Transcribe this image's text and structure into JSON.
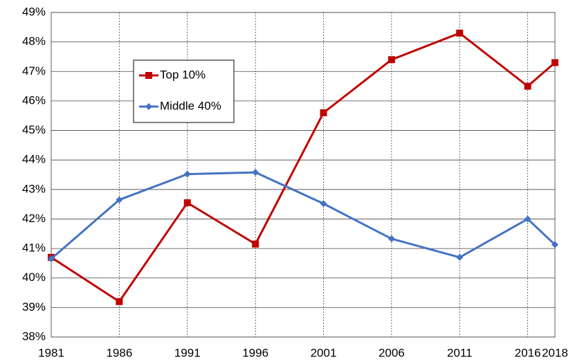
{
  "chart_data": {
    "type": "line",
    "x": [
      1981,
      1986,
      1991,
      1996,
      2001,
      2006,
      2011,
      2016,
      2018
    ],
    "series": [
      {
        "name": "Top 10%",
        "color": "#c00000",
        "marker": "square",
        "values": [
          40.7,
          39.2,
          42.55,
          41.15,
          45.6,
          47.4,
          48.3,
          46.5,
          47.3
        ]
      },
      {
        "name": "Middle 40%",
        "color": "#4472c4",
        "marker": "diamond",
        "values": [
          40.65,
          42.65,
          43.52,
          43.58,
          42.52,
          41.33,
          40.7,
          42.0,
          41.13
        ]
      }
    ],
    "xlim": [
      1981,
      2018
    ],
    "xticks": [
      1981,
      1986,
      1991,
      1996,
      2001,
      2006,
      2011,
      2016,
      2018
    ],
    "ylim": [
      38,
      49
    ],
    "yticks": [
      {
        "value": 38,
        "label": "38%"
      },
      {
        "value": 39,
        "label": "39%"
      },
      {
        "value": 40,
        "label": "40%"
      },
      {
        "value": 41,
        "label": "41%"
      },
      {
        "value": 42,
        "label": "42%"
      },
      {
        "value": 43,
        "label": "43%"
      },
      {
        "value": 44,
        "label": "44%"
      },
      {
        "value": 45,
        "label": "45%"
      },
      {
        "value": 46,
        "label": "46%"
      },
      {
        "value": 47,
        "label": "47%"
      },
      {
        "value": 48,
        "label": "48%"
      },
      {
        "value": 49,
        "label": "49%"
      }
    ],
    "grid": true
  }
}
